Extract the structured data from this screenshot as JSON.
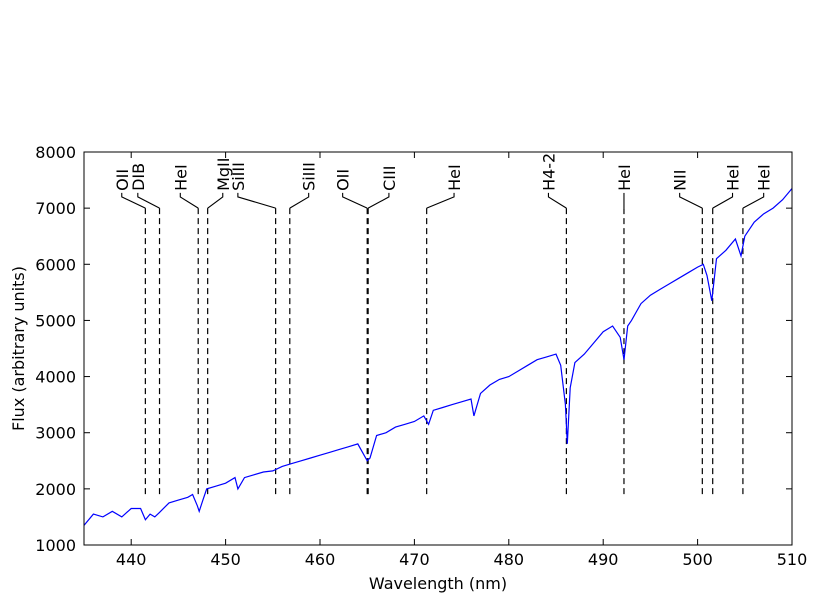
{
  "chart_data": {
    "type": "line",
    "title": "",
    "xlabel": "Wavelength (nm)",
    "ylabel": "Flux (arbitrary units)",
    "xlim": [
      435,
      510
    ],
    "ylim": [
      1000,
      8000
    ],
    "xticks": [
      440,
      450,
      460,
      470,
      480,
      490,
      500,
      510
    ],
    "yticks": [
      1000,
      2000,
      3000,
      4000,
      5000,
      6000,
      7000,
      8000
    ],
    "grid": false,
    "line_color": "#0000ff",
    "series": [
      {
        "x": [
          435,
          436,
          437,
          438,
          439,
          440,
          441,
          441.5,
          442,
          442.5,
          443,
          444,
          445,
          446,
          446.5,
          447,
          447.2,
          447.6,
          448,
          449,
          450,
          451,
          451.3,
          452,
          453,
          454,
          455,
          456,
          457,
          458,
          459,
          460,
          461,
          462,
          463,
          464,
          465,
          465.3,
          466,
          467,
          468,
          469,
          470,
          471,
          471.5,
          472,
          473,
          474,
          475,
          476,
          476.3,
          477,
          478,
          479,
          480,
          481,
          482,
          483,
          484,
          485,
          485.5,
          486,
          486.2,
          486.5,
          487,
          488,
          489,
          490,
          491,
          491.8,
          492.2,
          492.6,
          493,
          494,
          495,
          496,
          497,
          498,
          499,
          500,
          500.6,
          501,
          501.5,
          502,
          503,
          504,
          504.6,
          505,
          506,
          507,
          508,
          509,
          510
        ],
        "y": [
          1350,
          1550,
          1500,
          1600,
          1500,
          1650,
          1650,
          1450,
          1550,
          1500,
          1580,
          1750,
          1800,
          1850,
          1900,
          1700,
          1600,
          1800,
          2000,
          2050,
          2100,
          2200,
          2000,
          2200,
          2250,
          2300,
          2320,
          2400,
          2450,
          2500,
          2550,
          2600,
          2650,
          2700,
          2750,
          2800,
          2500,
          2550,
          2950,
          3000,
          3100,
          3150,
          3200,
          3300,
          3150,
          3400,
          3450,
          3500,
          3550,
          3600,
          3300,
          3700,
          3850,
          3950,
          4000,
          4100,
          4200,
          4300,
          4350,
          4400,
          4200,
          3500,
          2800,
          3800,
          4250,
          4400,
          4600,
          4800,
          4900,
          4700,
          4300,
          4900,
          5000,
          5300,
          5450,
          5550,
          5650,
          5750,
          5850,
          5950,
          6000,
          5800,
          5350,
          6100,
          6250,
          6450,
          6150,
          6500,
          6750,
          6900,
          7000,
          7150,
          7350
        ]
      }
    ],
    "line_ids": [
      {
        "label": "OII",
        "wavelength": 441.5,
        "label_wavelength": 439.0
      },
      {
        "label": "DIB",
        "wavelength": 443.0,
        "label_wavelength": 440.7
      },
      {
        "label": "HeI",
        "wavelength": 447.1,
        "label_wavelength": 445.2
      },
      {
        "label": "MgII",
        "wavelength": 448.1,
        "label_wavelength": 449.7
      },
      {
        "label": "SiIII",
        "wavelength": 455.3,
        "label_wavelength": 451.3
      },
      {
        "label": "SiIII",
        "wavelength": 456.8,
        "label_wavelength": 458.8
      },
      {
        "label": "OII",
        "wavelength": 465.0,
        "label_wavelength": 462.4
      },
      {
        "label": "CIII",
        "wavelength": 465.1,
        "label_wavelength": 467.3
      },
      {
        "label": "HeI",
        "wavelength": 471.3,
        "label_wavelength": 474.2
      },
      {
        "label": "H4-2",
        "wavelength": 486.1,
        "label_wavelength": 484.2
      },
      {
        "label": "HeI",
        "wavelength": 492.2,
        "label_wavelength": 492.2
      },
      {
        "label": "NII",
        "wavelength": 500.5,
        "label_wavelength": 498.1
      },
      {
        "label": "HeI",
        "wavelength": 501.6,
        "label_wavelength": 503.7
      },
      {
        "label": "HeI",
        "wavelength": 504.8,
        "label_wavelength": 507.0
      }
    ]
  }
}
